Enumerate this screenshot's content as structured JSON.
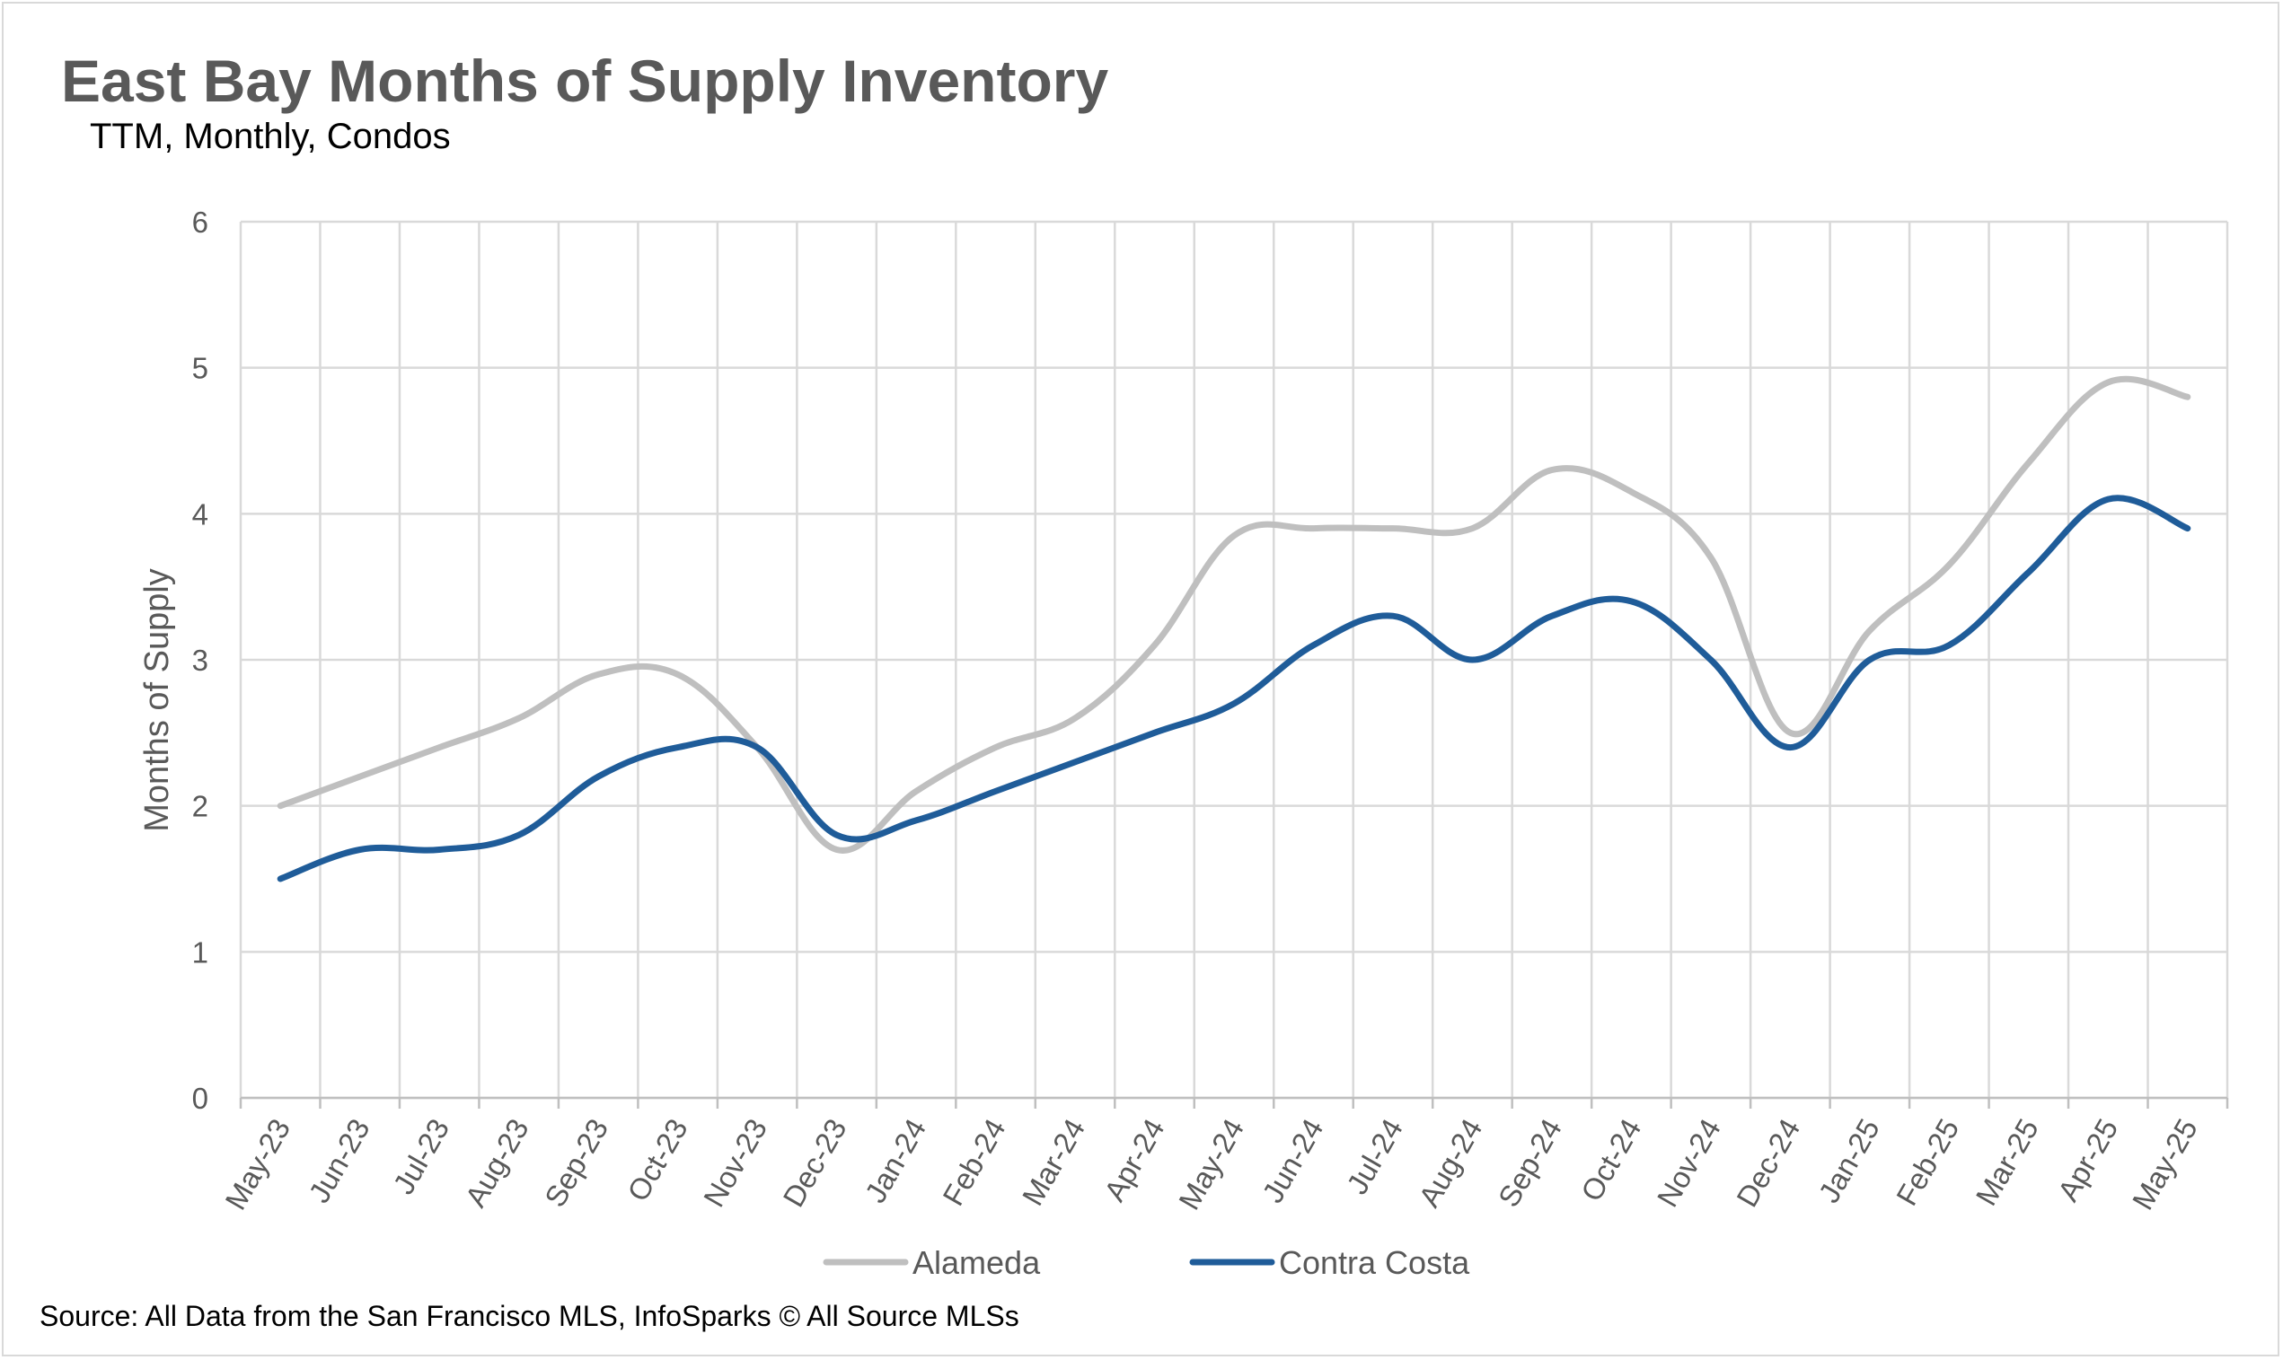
{
  "header": {
    "title": "East Bay Months of Supply Inventory",
    "subtitle": "TTM, Monthly, Condos"
  },
  "footer": {
    "source": "Source: All Data from the San Francisco MLS, InfoSparks © All Source MLSs"
  },
  "chart_data": {
    "type": "line",
    "title": "East Bay Months of Supply Inventory",
    "subtitle": "TTM, Monthly, Condos",
    "xlabel": "",
    "ylabel": "Months of Supply",
    "ylim": [
      0,
      6
    ],
    "yticks": [
      "0",
      "1",
      "2",
      "3",
      "4",
      "5",
      "6"
    ],
    "grid": true,
    "smoothed": true,
    "legend_position": "bottom",
    "categories": [
      "May-23",
      "Jun-23",
      "Jul-23",
      "Aug-23",
      "Sep-23",
      "Oct-23",
      "Nov-23",
      "Dec-23",
      "Jan-24",
      "Feb-24",
      "Mar-24",
      "Apr-24",
      "May-24",
      "Jun-24",
      "Jul-24",
      "Aug-24",
      "Sep-24",
      "Oct-24",
      "Nov-24",
      "Dec-24",
      "Jan-25",
      "Feb-25",
      "Mar-25",
      "Apr-25",
      "May-25"
    ],
    "series": [
      {
        "name": "Alameda",
        "color": "#bfbfbf",
        "values": [
          2.0,
          2.2,
          2.4,
          2.6,
          2.9,
          2.9,
          2.4,
          1.7,
          2.1,
          2.4,
          2.6,
          3.1,
          3.85,
          3.9,
          3.9,
          3.9,
          4.3,
          4.15,
          3.7,
          2.5,
          3.2,
          3.65,
          4.35,
          4.9,
          4.8
        ]
      },
      {
        "name": "Contra Costa",
        "color": "#1f5c99",
        "values": [
          1.5,
          1.7,
          1.7,
          1.8,
          2.2,
          2.4,
          2.4,
          1.8,
          1.9,
          2.1,
          2.3,
          2.5,
          2.7,
          3.1,
          3.3,
          3.0,
          3.3,
          3.4,
          3.0,
          2.4,
          3.0,
          3.1,
          3.6,
          4.1,
          3.9
        ]
      }
    ]
  }
}
